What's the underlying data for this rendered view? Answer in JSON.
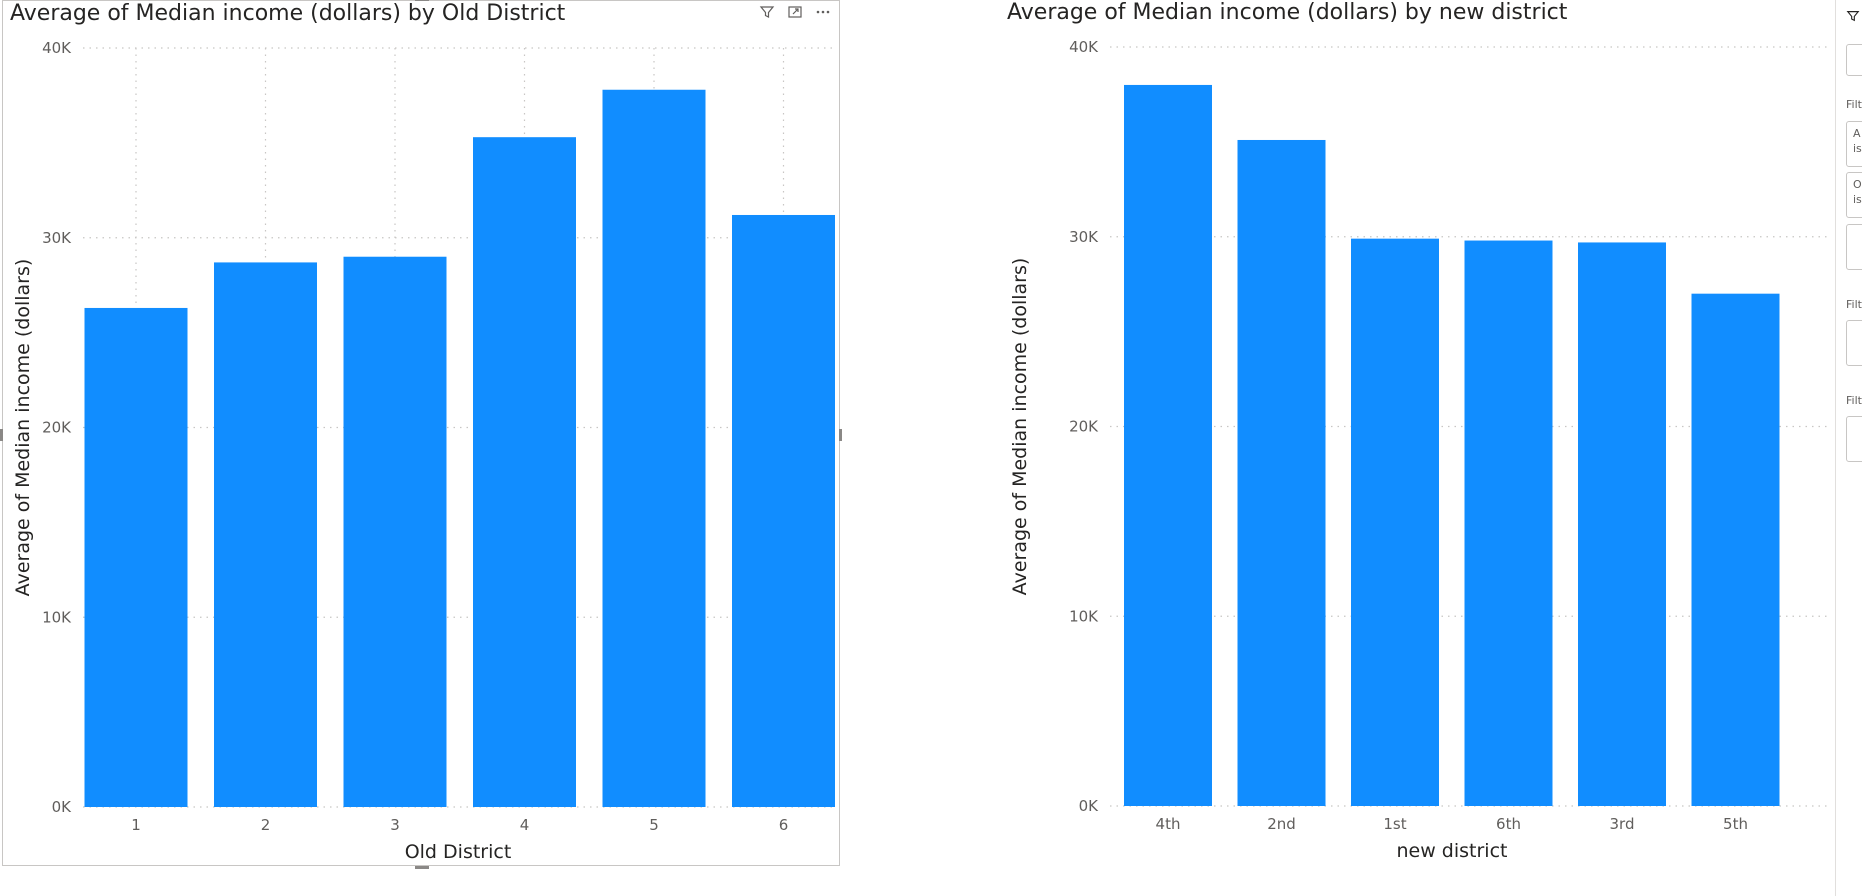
{
  "chart_data": [
    {
      "type": "bar",
      "title": "Average of Median income (dollars) by Old District",
      "xlabel": "Old District",
      "ylabel": "Average of Median income (dollars)",
      "categories": [
        "1",
        "2",
        "3",
        "4",
        "5",
        "6"
      ],
      "values": [
        26300,
        28700,
        29000,
        35300,
        37800,
        31200
      ],
      "ylim": [
        0,
        40000
      ],
      "yticks": [
        "0K",
        "10K",
        "20K",
        "30K",
        "40K"
      ],
      "grid": true,
      "color": "#118dff"
    },
    {
      "type": "bar",
      "title": "Average of Median income (dollars) by new district",
      "xlabel": "new district",
      "ylabel": "Average of Median income (dollars)",
      "categories": [
        "4th",
        "2nd",
        "1st",
        "6th",
        "3rd",
        "5th"
      ],
      "values": [
        38000,
        35100,
        29900,
        29800,
        29700,
        27000
      ],
      "ylim": [
        0,
        40000
      ],
      "yticks": [
        "0K",
        "10K",
        "20K",
        "30K",
        "40K"
      ],
      "grid": true,
      "color": "#118dff"
    }
  ],
  "header_icons": [
    "filter-icon",
    "focus-mode-icon",
    "more-options-icon"
  ],
  "filter_pane": {
    "labels": [
      "Filt",
      "Filt",
      "Filt"
    ],
    "cards": [
      "A\nis",
      "O\nis"
    ]
  }
}
